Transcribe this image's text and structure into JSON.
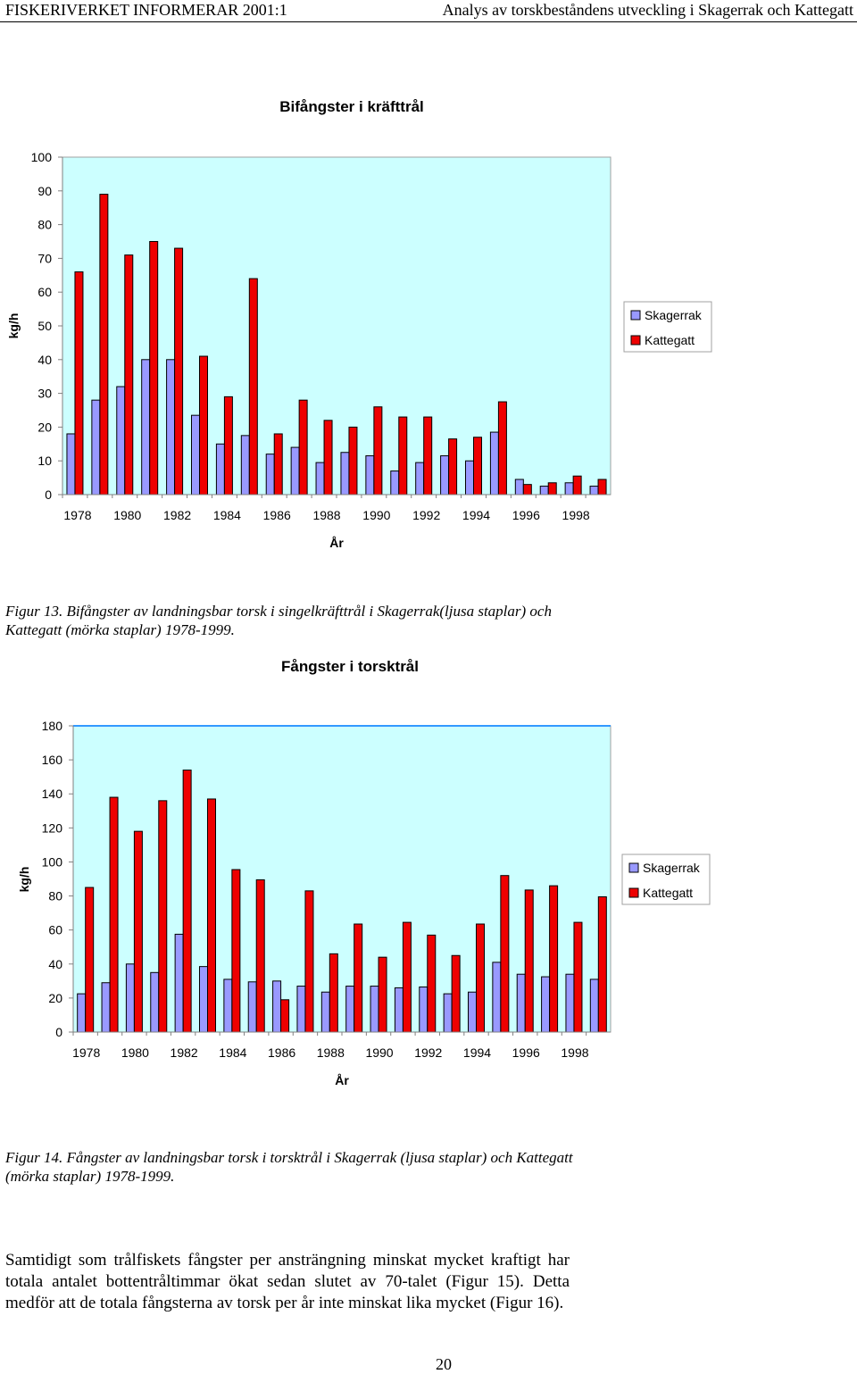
{
  "header": {
    "left": "FISKERIVERKET INFORMERAR 2001:1",
    "right": "Analys av torskbeståndens utveckling i Skagerrak och Kattegatt"
  },
  "colors": {
    "skagerrak": "#9999ff",
    "kattegatt": "#ee0000",
    "plot_bg": "#ccffff"
  },
  "chart_data": [
    {
      "type": "bar",
      "title": "Bifångster i kräfttrål",
      "xlabel": "År",
      "ylabel": "kg/h",
      "ylim": [
        0,
        100
      ],
      "yticks": [
        0,
        10,
        20,
        30,
        40,
        50,
        60,
        70,
        80,
        90,
        100
      ],
      "categories": [
        "1978",
        "1979",
        "1980",
        "1981",
        "1982",
        "1983",
        "1984",
        "1985",
        "1986",
        "1987",
        "1988",
        "1989",
        "1990",
        "1991",
        "1992",
        "1993",
        "1994",
        "1995",
        "1996",
        "1997",
        "1998",
        "1999"
      ],
      "xtick_labels": [
        "1978",
        "",
        "1980",
        "",
        "1982",
        "",
        "1984",
        "",
        "1986",
        "",
        "1988",
        "",
        "1990",
        "",
        "1992",
        "",
        "1994",
        "",
        "1996",
        "",
        "1998",
        ""
      ],
      "series": [
        {
          "name": "Skagerrak",
          "values": [
            18,
            28,
            32,
            40,
            40,
            23.5,
            15,
            17.5,
            12,
            14,
            9.5,
            12.5,
            11.5,
            7,
            9.5,
            11.5,
            10,
            18.5,
            4.5,
            2.5,
            3.5,
            2.5
          ]
        },
        {
          "name": "Kattegatt",
          "values": [
            66,
            89,
            71,
            75,
            73,
            41,
            29,
            64,
            18,
            28,
            22,
            20,
            26,
            23,
            23,
            16.5,
            17,
            27.5,
            3,
            3.5,
            5.5,
            4.5
          ]
        }
      ],
      "legend": "right",
      "grid": false
    },
    {
      "type": "bar",
      "title": "Fångster i torsktrål",
      "xlabel": "År",
      "ylabel": "kg/h",
      "ylim": [
        0,
        180
      ],
      "yticks": [
        0,
        20,
        40,
        60,
        80,
        100,
        120,
        140,
        160,
        180
      ],
      "categories": [
        "1978",
        "1979",
        "1980",
        "1981",
        "1982",
        "1983",
        "1984",
        "1985",
        "1986",
        "1987",
        "1988",
        "1989",
        "1990",
        "1991",
        "1992",
        "1993",
        "1994",
        "1995",
        "1996",
        "1997",
        "1998",
        "1999"
      ],
      "xtick_labels": [
        "1978",
        "",
        "1980",
        "",
        "1982",
        "",
        "1984",
        "",
        "1986",
        "",
        "1988",
        "",
        "1990",
        "",
        "1992",
        "",
        "1994",
        "",
        "1996",
        "",
        "1998",
        ""
      ],
      "series": [
        {
          "name": "Skagerrak",
          "values": [
            22.5,
            29,
            40,
            35,
            57.5,
            38.5,
            31,
            29.5,
            30,
            27,
            23.5,
            27,
            27,
            26,
            26.5,
            22.5,
            23.5,
            41,
            34,
            32.5,
            34,
            31
          ]
        },
        {
          "name": "Kattegatt",
          "values": [
            85,
            138,
            118,
            136,
            154,
            137,
            95.5,
            89.5,
            19,
            83,
            46,
            63.5,
            44,
            64.5,
            57,
            45,
            63.5,
            92,
            83.5,
            86,
            64.5,
            79.5
          ]
        }
      ],
      "legend": "right",
      "grid": false
    }
  ],
  "captions": {
    "fig13": "Figur 13. Bifångster av landningsbar torsk i singelkräfttrål i Skagerrak(ljusa staplar) och Kattegatt (mörka staplar) 1978-1999.",
    "fig14": "Figur 14. Fångster av landningsbar torsk i torsktrål i Skagerrak (ljusa staplar) och Kattegatt (mörka staplar) 1978-1999."
  },
  "body_text": "Samtidigt som trålfiskets fångster per ansträngning minskat mycket kraftigt har totala antalet bottentråltimmar ökat sedan slutet av 70-talet (Figur 15). Detta medför att de totala fångsterna av torsk per år inte minskat lika mycket (Figur 16).",
  "page_number": "20"
}
